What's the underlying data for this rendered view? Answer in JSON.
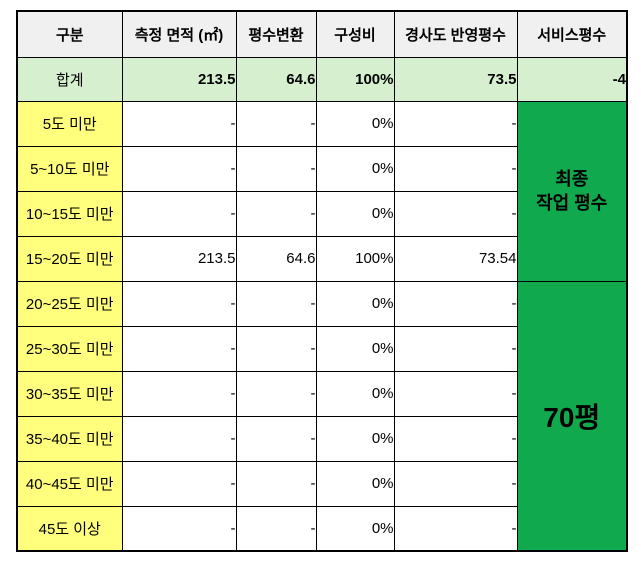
{
  "colors": {
    "header_bg": "#F0F0F0",
    "total_row_bg": "#D6EFCE",
    "category_bg": "#FFFF7D",
    "merged_cell_bg": "#10A94E",
    "merged_cell_text": "#FFFFFF",
    "negative_value": "#FF0000",
    "border": "#000000"
  },
  "table": {
    "headers": [
      "구분",
      "측정 면적 (㎡)",
      "평수변환",
      "구성비",
      "경사도 반영평수",
      "서비스평수"
    ],
    "total": {
      "label": "합계",
      "area": "213.5",
      "pyeong": "64.6",
      "ratio": "100%",
      "slope": "73.5",
      "service": "-4"
    },
    "rows": [
      {
        "label": "5도 미만",
        "area": "-",
        "pyeong": "-",
        "ratio": "0%",
        "slope": "-"
      },
      {
        "label": "5~10도 미만",
        "area": "-",
        "pyeong": "-",
        "ratio": "0%",
        "slope": "-"
      },
      {
        "label": "10~15도 미만",
        "area": "-",
        "pyeong": "-",
        "ratio": "0%",
        "slope": "-"
      },
      {
        "label": "15~20도 미만",
        "area": "213.5",
        "pyeong": "64.6",
        "ratio": "100%",
        "slope": "73.54"
      },
      {
        "label": "20~25도 미만",
        "area": "-",
        "pyeong": "-",
        "ratio": "0%",
        "slope": "-"
      },
      {
        "label": "25~30도 미만",
        "area": "-",
        "pyeong": "-",
        "ratio": "0%",
        "slope": "-"
      },
      {
        "label": "30~35도 미만",
        "area": "-",
        "pyeong": "-",
        "ratio": "0%",
        "slope": "-"
      },
      {
        "label": "35~40도 미만",
        "area": "-",
        "pyeong": "-",
        "ratio": "0%",
        "slope": "-"
      },
      {
        "label": "40~45도 미만",
        "area": "-",
        "pyeong": "-",
        "ratio": "0%",
        "slope": "-"
      },
      {
        "label": "45도 이상",
        "area": "-",
        "pyeong": "-",
        "ratio": "0%",
        "slope": "-"
      }
    ],
    "merged": {
      "final_work_pyeong_label": "최종\n작업 평수",
      "final_pyeong_value": "70평"
    }
  }
}
